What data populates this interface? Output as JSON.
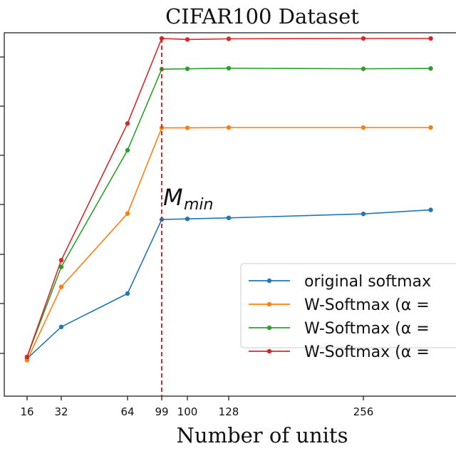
{
  "chart_data": {
    "type": "line",
    "title": "CIFAR100 Dataset",
    "xlabel": "Number of units",
    "ylabel": "",
    "x_ticks": [
      16,
      32,
      64,
      99,
      100,
      128,
      256
    ],
    "xlim": [
      10,
      310
    ],
    "ylim": [
      0,
      1
    ],
    "x": [
      16,
      32,
      64,
      99,
      100,
      128,
      256,
      320
    ],
    "series": [
      {
        "name": "original softmax",
        "color": "#1f77b4",
        "values": [
          0.04,
          0.135,
          0.235,
          0.457,
          0.459,
          0.462,
          0.474,
          0.486
        ]
      },
      {
        "name": "W-Softmax (α =",
        "color": "#ff7f0e",
        "values": [
          0.035,
          0.255,
          0.475,
          0.732,
          0.732,
          0.733,
          0.733,
          0.733
        ]
      },
      {
        "name": "W-Softmax (α =",
        "color": "#2ca02c",
        "values": [
          0.045,
          0.315,
          0.665,
          0.908,
          0.909,
          0.911,
          0.909,
          0.91
        ]
      },
      {
        "name": "W-Softmax (α =",
        "color": "#d62728",
        "values": [
          0.045,
          0.335,
          0.745,
          1.0,
          0.997,
          0.999,
          1.0,
          1.0
        ]
      }
    ],
    "annotation": {
      "text_main": "M",
      "text_sub": "min",
      "x": 99,
      "color": "#d62728",
      "linestyle": "dashed"
    },
    "legend_placement": "lower-right",
    "grid": false
  }
}
